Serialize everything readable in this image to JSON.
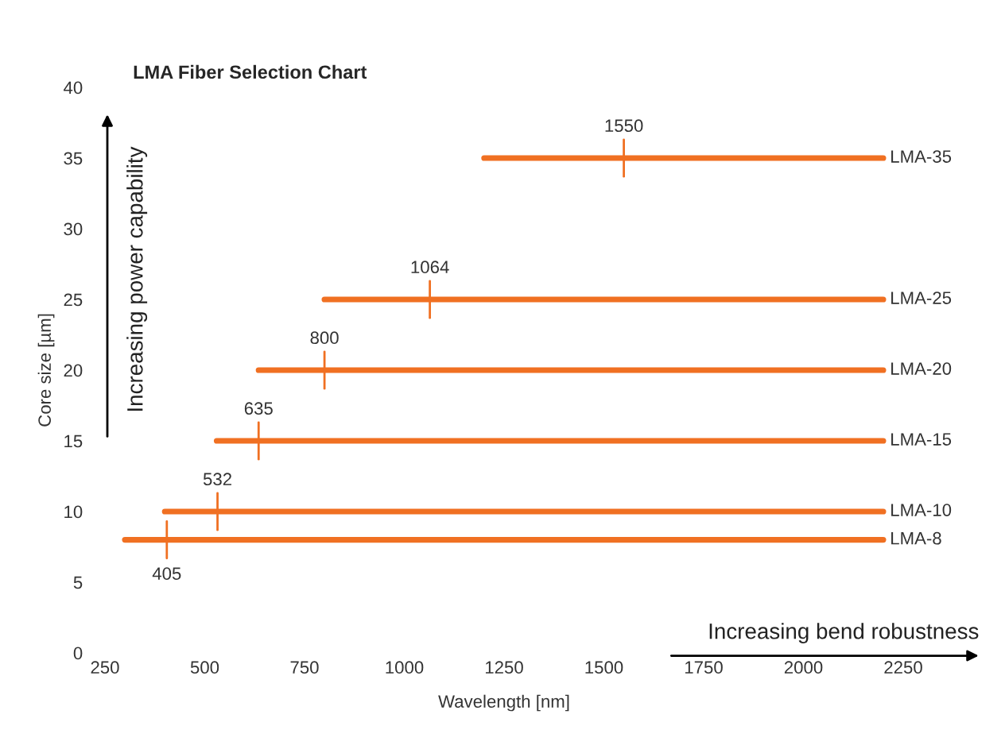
{
  "chart_data": {
    "type": "line",
    "title": "LMA Fiber Selection Chart",
    "xlabel": "Wavelength [nm]",
    "ylabel": "Core size [µm]",
    "xlim": [
      250,
      2250
    ],
    "xticks": [
      250,
      500,
      750,
      1000,
      1250,
      1500,
      1750,
      2000,
      2250
    ],
    "ylim": [
      0,
      40
    ],
    "yticks": [
      0,
      5,
      10,
      15,
      20,
      25,
      30,
      35,
      40
    ],
    "grid": false,
    "legend": false,
    "marker": "none",
    "line_style": "solid",
    "series": [
      {
        "name": "LMA-35",
        "color": "#f07022",
        "x": [
          1200,
          2200
        ],
        "values": [
          35,
          35
        ]
      },
      {
        "name": "LMA-25",
        "color": "#f07022",
        "x": [
          800,
          2200
        ],
        "values": [
          25,
          25
        ]
      },
      {
        "name": "LMA-20",
        "color": "#f07022",
        "x": [
          635,
          2200
        ],
        "values": [
          20,
          20
        ]
      },
      {
        "name": "LMA-15",
        "color": "#f07022",
        "x": [
          530,
          2200
        ],
        "values": [
          15,
          15
        ]
      },
      {
        "name": "LMA-10",
        "color": "#f07022",
        "x": [
          400,
          2200
        ],
        "values": [
          10,
          10
        ]
      },
      {
        "name": "LMA-8",
        "color": "#f07022",
        "x": [
          300,
          2200
        ],
        "values": [
          8,
          8
        ]
      }
    ],
    "annotations": [
      {
        "text": "1550",
        "x": 1550,
        "y": 35
      },
      {
        "text": "1064",
        "x": 1064,
        "y": 25
      },
      {
        "text": "800",
        "x": 800,
        "y": 20
      },
      {
        "text": "635",
        "x": 635,
        "y": 15
      },
      {
        "text": "532",
        "x": 532,
        "y": 10
      },
      {
        "text": "405",
        "x": 405,
        "y": 8
      },
      "Increasing power capability",
      "Increasing bend robustness"
    ]
  }
}
